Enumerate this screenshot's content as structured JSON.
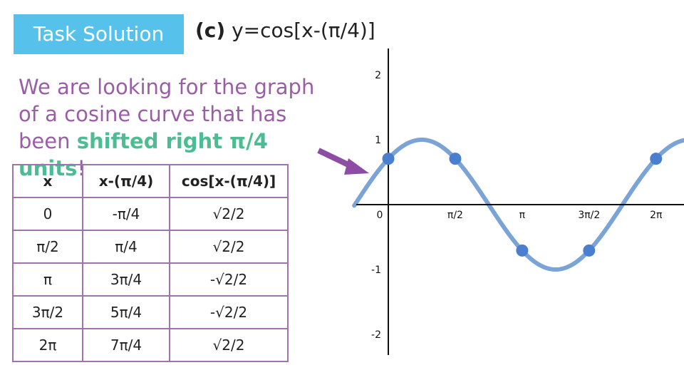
{
  "header": {
    "badge": "Task Solution",
    "part": "(c)",
    "equation": "y=cos[x-(π/4)]"
  },
  "intro": {
    "text_before": "We are looking for the graph of a cosine curve that has been ",
    "highlight": "shifted right π/4 units",
    "text_after": "!"
  },
  "table": {
    "headers": [
      "x",
      "x-(π/4)",
      "cos[x-(π/4)]"
    ],
    "rows": [
      [
        "0",
        "-π/4",
        "√2/2"
      ],
      [
        "π/2",
        "π/4",
        "√2/2"
      ],
      [
        "π",
        "3π/4",
        "-√2/2"
      ],
      [
        "3π/2",
        "5π/4",
        "-√2/2"
      ],
      [
        "2π",
        "7π/4",
        "√2/2"
      ]
    ]
  },
  "colors": {
    "badge": "#56c2ec",
    "intro_text": "#9a5ea6",
    "highlight": "#4cbc94",
    "table_border": "#9f74ad",
    "curve": "#7aa3d6",
    "points": "#4a7fcf",
    "arrow": "#8e4da4"
  },
  "chart_data": {
    "type": "line",
    "function": "y=cos[x-(π/4)]",
    "x_tick_labels": [
      "0",
      "π/2",
      "π",
      "3π/2",
      "2π"
    ],
    "x_tick_values": [
      0,
      1.5708,
      3.1416,
      4.7124,
      6.2832
    ],
    "y_tick_labels": [
      "2",
      "1",
      "-1",
      "-2"
    ],
    "y_tick_values": [
      2,
      1,
      -1,
      -2
    ],
    "xlim": [
      -0.8,
      7.0
    ],
    "ylim": [
      -2.3,
      2.4
    ],
    "points": [
      {
        "x": 0,
        "y": 0.7071
      },
      {
        "x": 1.5708,
        "y": 0.7071
      },
      {
        "x": 3.1416,
        "y": -0.7071
      },
      {
        "x": 4.7124,
        "y": -0.7071
      },
      {
        "x": 6.2832,
        "y": 0.7071
      }
    ],
    "grid": false
  }
}
